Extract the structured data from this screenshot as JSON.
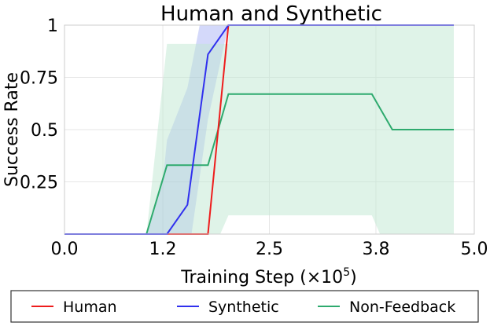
{
  "chart_data": {
    "type": "line",
    "title": "Human and Synthetic",
    "xlabel": "Training Step (×10",
    "xlabel_exp": "5",
    "xlabel_end": ")",
    "ylabel": "Success Rate",
    "xlim": [
      0.0,
      5.0
    ],
    "ylim": [
      0.0,
      1.0
    ],
    "x_ticks": [
      {
        "value": 0.0,
        "label": "0.0"
      },
      {
        "value": 1.2,
        "label": "1.2"
      },
      {
        "value": 2.5,
        "label": "2.5"
      },
      {
        "value": 3.8,
        "label": "3.8"
      },
      {
        "value": 5.0,
        "label": "5.0"
      }
    ],
    "y_ticks": [
      {
        "value": 0.25,
        "label": "0.25"
      },
      {
        "value": 0.5,
        "label": "0.5"
      },
      {
        "value": 0.75,
        "label": "0.75"
      },
      {
        "value": 1.0,
        "label": "1"
      }
    ],
    "grid": true,
    "legend_position": "bottom",
    "series": [
      {
        "name": "Human",
        "color": "#ee1c1c",
        "x": [
          0.0,
          1.75,
          2.0,
          4.75
        ],
        "y": [
          0.0,
          0.0,
          1.0,
          1.0
        ],
        "band_color": "#f4a3a3",
        "band_opacity": 0.35,
        "band_upper": [],
        "band_lower": []
      },
      {
        "name": "Synthetic",
        "color": "#3030ee",
        "x": [
          0.0,
          1.25,
          1.5,
          1.75,
          2.0,
          4.75
        ],
        "y": [
          0.0,
          0.0,
          0.14,
          0.86,
          1.0,
          1.0
        ],
        "band_color": "#7080f0",
        "band_opacity": 0.3,
        "band_upper": [
          [
            1.0,
            0.0
          ],
          [
            1.2,
            0.25
          ],
          [
            1.25,
            0.45
          ],
          [
            1.5,
            0.7
          ],
          [
            1.65,
            1.0
          ],
          [
            1.85,
            1.0
          ]
        ],
        "band_lower": [
          [
            1.85,
            1.0
          ],
          [
            2.0,
            1.0
          ],
          [
            1.75,
            0.55
          ],
          [
            1.55,
            0.0
          ],
          [
            1.35,
            0.0
          ]
        ]
      },
      {
        "name": "Non-Feedback",
        "color": "#2eaa6e",
        "x": [
          0.0,
          1.0,
          1.25,
          1.75,
          2.0,
          3.75,
          4.0,
          4.75
        ],
        "y": [
          0.0,
          0.0,
          0.33,
          0.33,
          0.67,
          0.67,
          0.5,
          0.5
        ],
        "band_color": "#bfe8d2",
        "band_opacity": 0.5,
        "band_upper": [
          [
            1.0,
            0.0
          ],
          [
            1.25,
            0.91
          ],
          [
            2.0,
            0.91
          ],
          [
            2.0,
            1.0
          ],
          [
            4.75,
            1.0
          ]
        ],
        "band_lower": [
          [
            4.75,
            0.0
          ],
          [
            3.85,
            0.0
          ],
          [
            3.75,
            0.09
          ],
          [
            2.0,
            0.09
          ],
          [
            1.9,
            0.0
          ],
          [
            1.0,
            0.0
          ]
        ]
      }
    ]
  }
}
